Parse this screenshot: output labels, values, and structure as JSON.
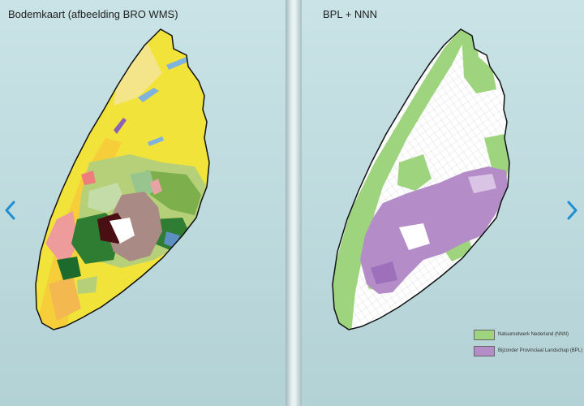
{
  "left_panel": {
    "title": "Bodemkaart  (afbeelding BRO WMS)",
    "arrow_icon": "chevron-left-icon"
  },
  "right_panel": {
    "title": "BPL + NNN",
    "arrow_icon": "chevron-right-icon",
    "legend": [
      {
        "label": "Natuurnetwerk Nederland (NNN)",
        "color": "#9fd47f"
      },
      {
        "label": "Bijzonder Provinciaal Landschap (BPL)",
        "color": "#b48cc8"
      }
    ]
  },
  "colors": {
    "background": "#b9d6da",
    "accent_arrow": "#1f8fd0",
    "soil_yellow": "#f2e33a",
    "soil_brown": "#a98a84",
    "soil_darkgreen": "#2e7d32",
    "nnn_green": "#9fd47f",
    "bpl_purple": "#b48cc8"
  }
}
